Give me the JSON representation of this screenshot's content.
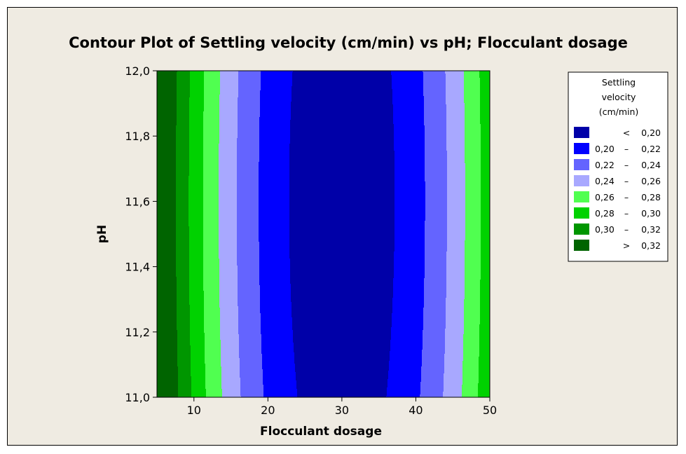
{
  "chart_data": {
    "type": "contour",
    "title": "Contour Plot of Settling velocity (cm/min) vs pH; Flocculant dosage",
    "xlabel": "Flocculant dosage",
    "ylabel": "pH",
    "xlim": [
      5,
      50
    ],
    "ylim": [
      11.0,
      12.0
    ],
    "x_ticks": [
      10,
      20,
      30,
      40,
      50
    ],
    "x_tick_labels": [
      "10",
      "20",
      "30",
      "40",
      "50"
    ],
    "y_ticks": [
      11.0,
      11.2,
      11.4,
      11.6,
      11.8,
      12.0
    ],
    "y_tick_labels": [
      "11,0",
      "11,2",
      "11,4",
      "11,6",
      "11,8",
      "12,0"
    ],
    "minimum": {
      "x": 30,
      "y": 11.6
    },
    "legend": {
      "title": [
        "Settling",
        "velocity",
        "(cm/min)"
      ],
      "placement": "right",
      "levels": [
        {
          "low": "",
          "sep": "<",
          "high": "0,20",
          "color": "#0000a8"
        },
        {
          "low": "0,20",
          "sep": "–",
          "high": "0,22",
          "color": "#0000ff"
        },
        {
          "low": "0,22",
          "sep": "–",
          "high": "0,24",
          "color": "#6464ff"
        },
        {
          "low": "0,24",
          "sep": "–",
          "high": "0,26",
          "color": "#a8a8ff"
        },
        {
          "low": "0,26",
          "sep": "–",
          "high": "0,28",
          "color": "#50ff50"
        },
        {
          "low": "0,28",
          "sep": "–",
          "high": "0,30",
          "color": "#00d200"
        },
        {
          "low": "0,30",
          "sep": "–",
          "high": "0,32",
          "color": "#009600"
        },
        {
          "low": "",
          "sep": ">",
          "high": "0,32",
          "color": "#006400"
        }
      ]
    },
    "contours": [
      {
        "level": "0,32",
        "x_left_at_y": {
          "11.0": 6.5,
          "11.2": 6.0,
          "11.6": 5.7,
          "12.0": 5.5
        }
      },
      {
        "level": "0,30",
        "x_left_at_y": {
          "11.0": 8.0,
          "11.2": 7.7,
          "11.6": 7.4,
          "12.0": 7.2
        }
      },
      {
        "level": "0,28",
        "x_left_at_y": {
          "11.0": 10.5,
          "11.2": 10.1,
          "11.6": 9.6,
          "12.0": 9.3
        },
        "x_right_at_y": {
          "11.0": 49.0,
          "11.6": 49.3,
          "12.0": 49.5
        }
      },
      {
        "level": "0,26",
        "x_left_at_y": {
          "11.0": 13.5,
          "11.2": 13.0,
          "11.6": 12.5,
          "12.0": 12.3
        },
        "x_right_at_y": {
          "11.0": 46.5,
          "11.6": 47.2,
          "12.0": 47.5
        }
      },
      {
        "level": "0,24",
        "x_left_at_y": {
          "11.0": 17.0,
          "11.2": 16.4,
          "11.6": 15.8,
          "12.0": 15.6
        },
        "x_right_at_y": {
          "11.0": 43.5,
          "11.6": 44.2,
          "12.0": 44.5
        }
      },
      {
        "level": "0,22",
        "x_left_at_y": {
          "11.0": 21.5,
          "11.2": 20.8,
          "11.6": 20.2,
          "12.0": 20.2
        },
        "x_right_at_y": {
          "11.0": 39.5,
          "11.6": 40.2,
          "12.0": 40.3
        }
      },
      {
        "level": "0,20",
        "x_range": [
          24.5,
          35.5
        ],
        "y_min": 11.04,
        "y_max": 12.0
      }
    ]
  }
}
